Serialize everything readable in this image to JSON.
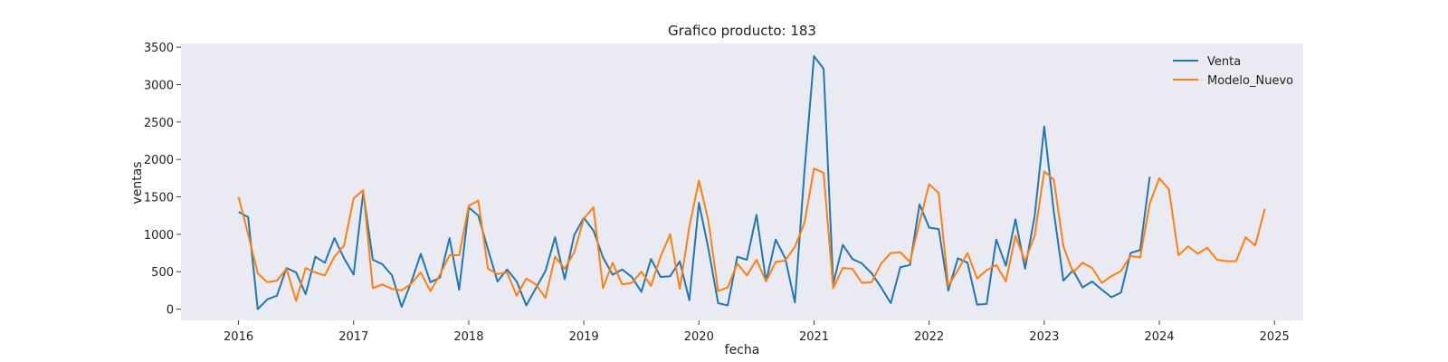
{
  "chart_data": {
    "type": "line",
    "title": "Grafico producto: 183",
    "xlabel": "fecha",
    "ylabel": "ventas",
    "x_start": "2016-01",
    "x_frequency": "monthly",
    "xlim": [
      "2015-07",
      "2025-04"
    ],
    "ylim": [
      -150,
      3550
    ],
    "x_ticks": [
      "2016",
      "2017",
      "2018",
      "2019",
      "2020",
      "2021",
      "2022",
      "2023",
      "2024",
      "2025"
    ],
    "y_ticks": [
      0,
      500,
      1000,
      1500,
      2000,
      2500,
      3000,
      3500
    ],
    "y_tick_labels": [
      "0",
      "500",
      "1000",
      "1500",
      "2000",
      "2500",
      "3000",
      "3500"
    ],
    "grid": false,
    "background_color": "#eaeaf2",
    "legend": {
      "position": "top-right"
    },
    "series": [
      {
        "name": "Venta",
        "color": "#1f77b4",
        "values": [
          1300,
          1230,
          0,
          130,
          180,
          550,
          490,
          200,
          700,
          620,
          950,
          680,
          460,
          1560,
          660,
          600,
          450,
          30,
          360,
          740,
          360,
          420,
          950,
          260,
          1360,
          1250,
          800,
          370,
          530,
          370,
          50,
          280,
          510,
          960,
          400,
          990,
          1220,
          1050,
          690,
          460,
          530,
          430,
          230,
          670,
          430,
          440,
          640,
          120,
          1420,
          800,
          80,
          50,
          700,
          660,
          1260,
          370,
          930,
          680,
          90,
          1840,
          3380,
          3210,
          340,
          860,
          670,
          610,
          480,
          290,
          80,
          560,
          590,
          1400,
          1090,
          1070,
          250,
          680,
          620,
          60,
          70,
          930,
          580,
          1200,
          540,
          1240,
          2440,
          1300,
          380,
          520,
          290,
          370,
          260,
          160,
          220,
          750,
          790,
          1770
        ]
      },
      {
        "name": "Modelo_Nuevo",
        "color": "#ff7f0e",
        "values": [
          1500,
          1000,
          480,
          360,
          380,
          540,
          110,
          550,
          490,
          450,
          700,
          850,
          1480,
          1590,
          280,
          330,
          270,
          250,
          340,
          490,
          240,
          460,
          720,
          720,
          1380,
          1450,
          540,
          470,
          490,
          180,
          410,
          330,
          150,
          700,
          540,
          760,
          1210,
          1360,
          280,
          620,
          330,
          350,
          500,
          310,
          700,
          1000,
          270,
          1100,
          1720,
          1170,
          240,
          290,
          610,
          450,
          660,
          370,
          630,
          650,
          830,
          1150,
          1880,
          1820,
          280,
          550,
          540,
          350,
          360,
          610,
          750,
          760,
          630,
          1160,
          1670,
          1550,
          310,
          520,
          750,
          410,
          520,
          590,
          370,
          980,
          640,
          980,
          1840,
          1730,
          840,
          490,
          620,
          550,
          350,
          440,
          510,
          710,
          690,
          1410,
          1750,
          1600,
          720,
          840,
          740,
          820,
          660,
          640,
          640,
          960,
          850,
          1340
        ]
      }
    ]
  }
}
